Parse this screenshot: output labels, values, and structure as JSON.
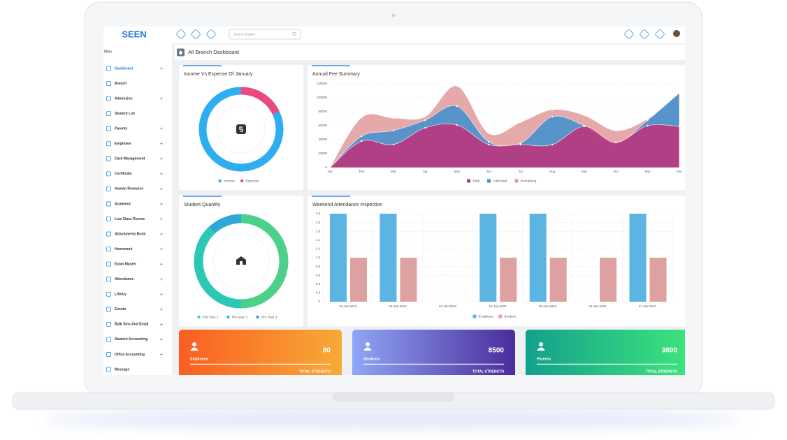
{
  "header": {
    "logo": "SEEN",
    "search_placeholder": "Search Student"
  },
  "sidebar": {
    "section": "Main",
    "items": [
      {
        "label": "Dashboard",
        "expandable": true
      },
      {
        "label": "Branch",
        "expandable": false
      },
      {
        "label": "Admission",
        "expandable": true
      },
      {
        "label": "Student List",
        "expandable": false
      },
      {
        "label": "Parents",
        "expandable": true
      },
      {
        "label": "Employee",
        "expandable": true
      },
      {
        "label": "Card Management",
        "expandable": true
      },
      {
        "label": "Certificate",
        "expandable": true
      },
      {
        "label": "Human Resource",
        "expandable": true
      },
      {
        "label": "Academic",
        "expandable": true
      },
      {
        "label": "Live Class Rooms",
        "expandable": true
      },
      {
        "label": "Attachments Book",
        "expandable": true
      },
      {
        "label": "Homework",
        "expandable": true
      },
      {
        "label": "Exam Master",
        "expandable": true
      },
      {
        "label": "Attendance",
        "expandable": true
      },
      {
        "label": "Library",
        "expandable": true
      },
      {
        "label": "Events",
        "expandable": true
      },
      {
        "label": "Bulk Sms And Email",
        "expandable": true
      },
      {
        "label": "Student Accounting",
        "expandable": true
      },
      {
        "label": "Office Accounting",
        "expandable": true
      },
      {
        "label": "Message",
        "expandable": false
      }
    ]
  },
  "page_title": "All Branch Dashboard",
  "chart_data": [
    {
      "type": "pie",
      "title": "Income Vs Expense Of January",
      "categories": [
        "Income",
        "Expense"
      ],
      "values": [
        82,
        18
      ],
      "colors": [
        "#2eaef0",
        "#e8497e"
      ],
      "clockwise": false
    },
    {
      "type": "area",
      "title": "Annual Fee Summary",
      "categories": [
        "Jan",
        "Feb",
        "Mar",
        "Apr",
        "May",
        "Jun",
        "Jul",
        "Aug",
        "Sep",
        "Oct",
        "Nov",
        "Dec"
      ],
      "ylim": [
        0,
        120000
      ],
      "yticks": [
        0,
        20000,
        40000,
        60000,
        80000,
        100000,
        120000
      ],
      "grid": true,
      "series": [
        {
          "name": "Total",
          "color": "#c0307a",
          "values": [
            0,
            38000,
            33000,
            57000,
            61000,
            33000,
            33000,
            33000,
            59000,
            36000,
            60000,
            59000
          ]
        },
        {
          "name": "Collected",
          "color": "#3f8fcf",
          "values": [
            0,
            45000,
            53000,
            68000,
            88000,
            37000,
            35000,
            73000,
            60000,
            35000,
            68000,
            107000
          ]
        },
        {
          "name": "Remaining",
          "color": "#e09a9a",
          "values": [
            0,
            72000,
            71000,
            73000,
            117000,
            49000,
            65000,
            83000,
            75000,
            53000,
            70000,
            107000
          ]
        }
      ]
    },
    {
      "type": "pie",
      "title": "Student Quantity",
      "categories": [
        "Pre Year 1",
        "Pre year 2",
        "Pre Year 3"
      ],
      "values": [
        50,
        38,
        12
      ],
      "colors": [
        "#4dd08a",
        "#2dc7b5",
        "#2fa8d5"
      ],
      "clockwise": true
    },
    {
      "type": "bar",
      "title": "Weekend Attendance Inspection",
      "categories": [
        "21-Jan-2022",
        "22-Jan-2022",
        "23-Jan-2022",
        "24-Jan-2022",
        "25-Jan-2022",
        "26-Jan-2022",
        "27-Jan-2022"
      ],
      "ylim": [
        0,
        2
      ],
      "yticks": [
        0,
        0.2,
        0.4,
        0.6,
        0.8,
        {
          "value": 1,
          "label": "1.0"
        },
        1.2,
        1.4,
        1.6,
        1.8,
        {
          "value": 2,
          "label": "2.0"
        }
      ],
      "grid": true,
      "series": [
        {
          "name": "Employee",
          "color": "#5cb4e2",
          "values": [
            2,
            2,
            0,
            2,
            2,
            0,
            2
          ]
        },
        {
          "name": "Student",
          "color": "#dea1a1",
          "values": [
            1,
            1,
            0,
            1,
            1,
            1,
            1
          ]
        }
      ]
    }
  ],
  "cards": [
    {
      "label": "Employee",
      "value": 80,
      "caption": "TOTAL STRENGTH",
      "colors": [
        "#fb5e22",
        "#f7aa36"
      ]
    },
    {
      "label": "Students",
      "value": 8500,
      "caption": "TOTAL STRENGTH",
      "colors": [
        "#8fa6f5",
        "#4a2c9c"
      ]
    },
    {
      "label": "Parents",
      "value": 3800,
      "caption": "TOTAL STRENGTH",
      "colors": [
        "#13a08c",
        "#3de47c"
      ]
    }
  ]
}
